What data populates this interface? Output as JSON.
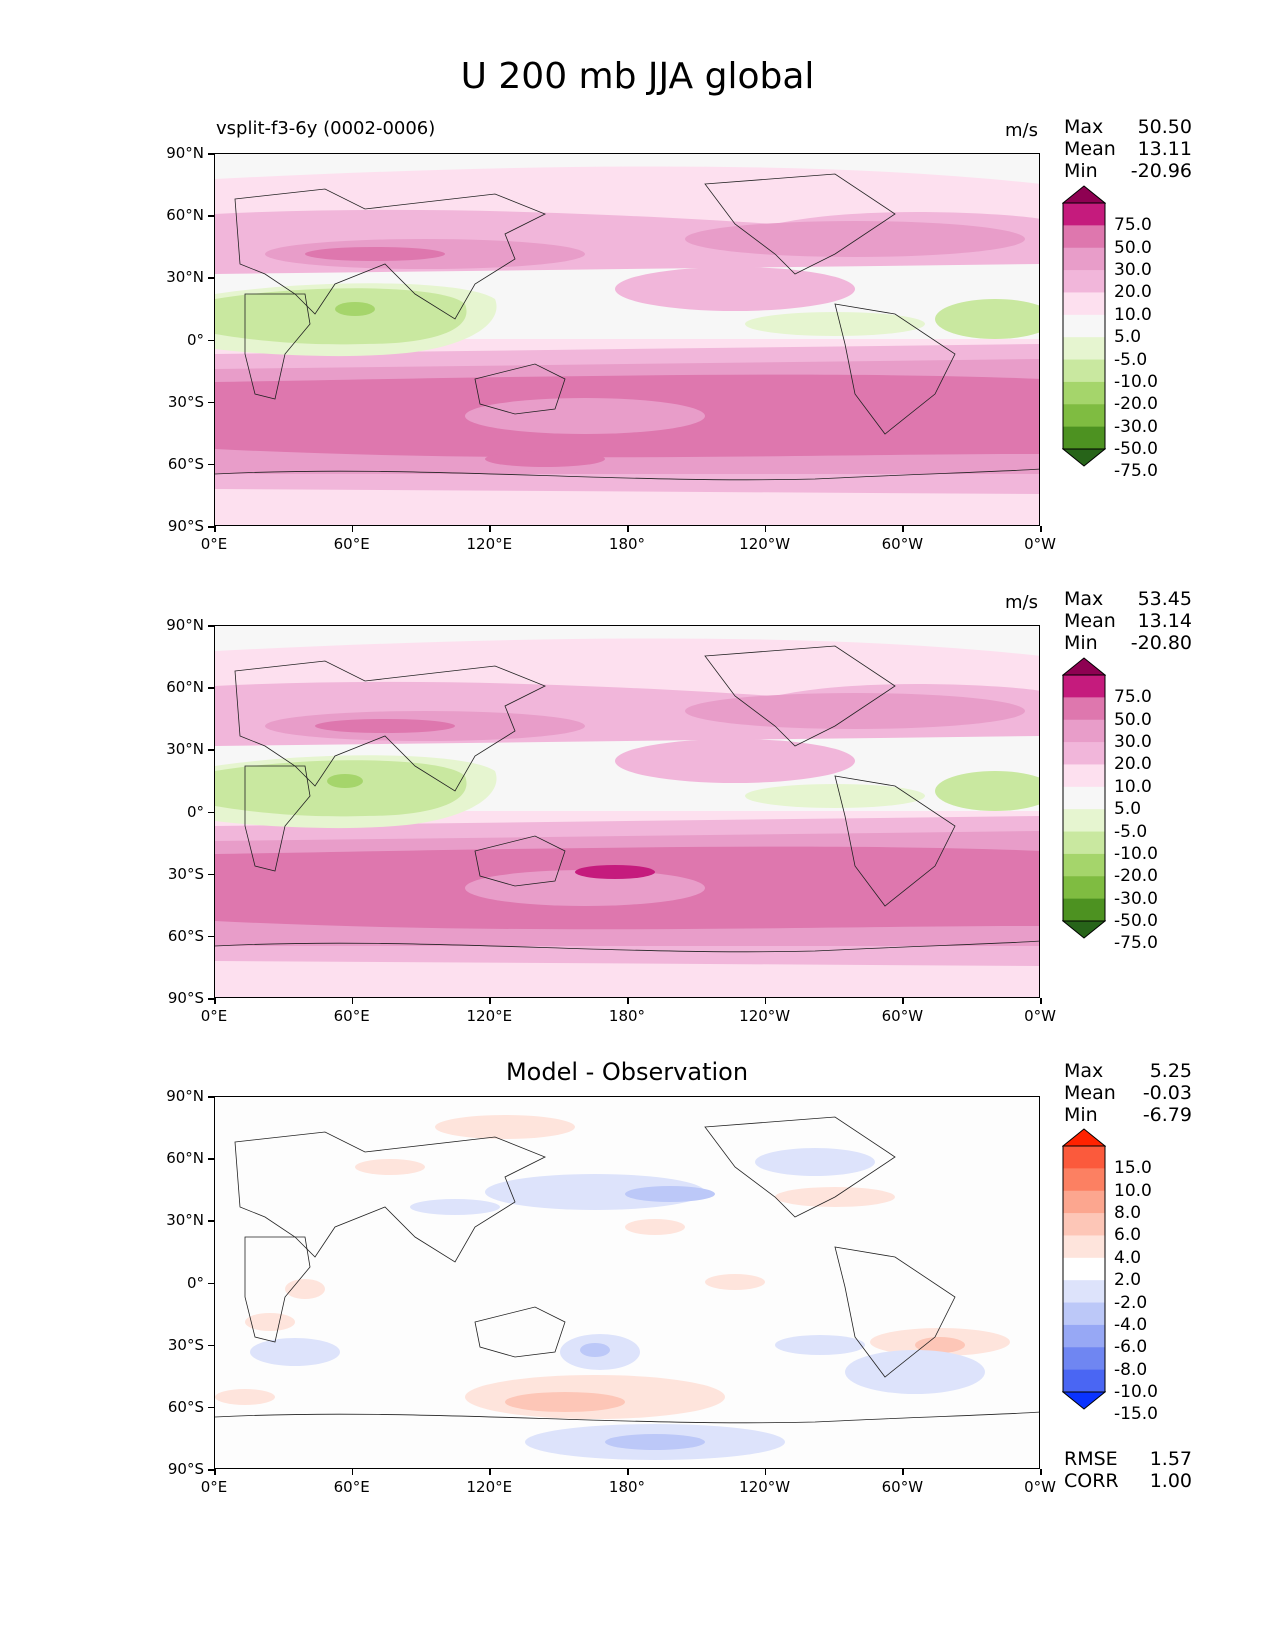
{
  "title": "U 200 mb JJA global",
  "x_ticks": [
    "0°E",
    "60°E",
    "120°E",
    "180°",
    "120°W",
    "60°W",
    "0°W"
  ],
  "y_ticks": [
    "90°N",
    "60°N",
    "30°N",
    "0°",
    "30°S",
    "60°S",
    "90°S"
  ],
  "panels": [
    {
      "left_label": "vsplit-f3-6y (0002-0006)",
      "units": "m/s",
      "center_title": "",
      "stats": {
        "max_label": "Max",
        "max": "50.50",
        "mean_label": "Mean",
        "mean": "13.11",
        "min_label": "Min",
        "min": "-20.96"
      },
      "colorbar": {
        "levels": [
          "75.0",
          "50.0",
          "30.0",
          "20.0",
          "10.0",
          "5.0",
          "-5.0",
          "-10.0",
          "-20.0",
          "-30.0",
          "-50.0",
          "-75.0"
        ],
        "colors": [
          "#8e0152",
          "#c51b7d",
          "#de77ae",
          "#e89dc9",
          "#f1b6da",
          "#fde0ef",
          "#f7f7f7",
          "#e6f5d0",
          "#c9e8a0",
          "#a5d56b",
          "#7fbc41",
          "#4d9221",
          "#276419"
        ]
      }
    },
    {
      "left_label": "",
      "units": "m/s",
      "center_title": "",
      "stats": {
        "max_label": "Max",
        "max": "53.45",
        "mean_label": "Mean",
        "mean": "13.14",
        "min_label": "Min",
        "min": "-20.80"
      },
      "colorbar": {
        "levels": [
          "75.0",
          "50.0",
          "30.0",
          "20.0",
          "10.0",
          "5.0",
          "-5.0",
          "-10.0",
          "-20.0",
          "-30.0",
          "-50.0",
          "-75.0"
        ],
        "colors": [
          "#8e0152",
          "#c51b7d",
          "#de77ae",
          "#e89dc9",
          "#f1b6da",
          "#fde0ef",
          "#f7f7f7",
          "#e6f5d0",
          "#c9e8a0",
          "#a5d56b",
          "#7fbc41",
          "#4d9221",
          "#276419"
        ]
      }
    },
    {
      "left_label": "",
      "units": "",
      "center_title": "Model - Observation",
      "stats": {
        "max_label": "Max",
        "max": "5.25",
        "mean_label": "Mean",
        "mean": "-0.03",
        "min_label": "Min",
        "min": "-6.79"
      },
      "colorbar": {
        "levels": [
          "15.0",
          "10.0",
          "8.0",
          "6.0",
          "4.0",
          "2.0",
          "-2.0",
          "-4.0",
          "-6.0",
          "-8.0",
          "-10.0",
          "-15.0"
        ],
        "colors": [
          "#ff2200",
          "#fb5a3c",
          "#fc8062",
          "#fca68f",
          "#fdc6b7",
          "#fee4dc",
          "#ffffff",
          "#dde3fb",
          "#bcc8f8",
          "#97a8f5",
          "#6f86f2",
          "#4a66f3",
          "#0a33ff"
        ]
      },
      "rmse_label": "RMSE",
      "rmse": "1.57",
      "corr_label": "CORR",
      "corr": "1.00"
    }
  ]
}
